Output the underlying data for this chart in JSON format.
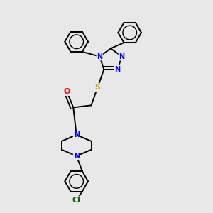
{
  "background_color": "#e8e8e8",
  "bond_color": "#000000",
  "atom_colors": {
    "N": "#0000ff",
    "S": "#ccaa00",
    "O": "#ff0000",
    "Cl": "#006600",
    "C": "#000000"
  },
  "figsize": [
    3.0,
    3.0
  ],
  "dpi": 100
}
